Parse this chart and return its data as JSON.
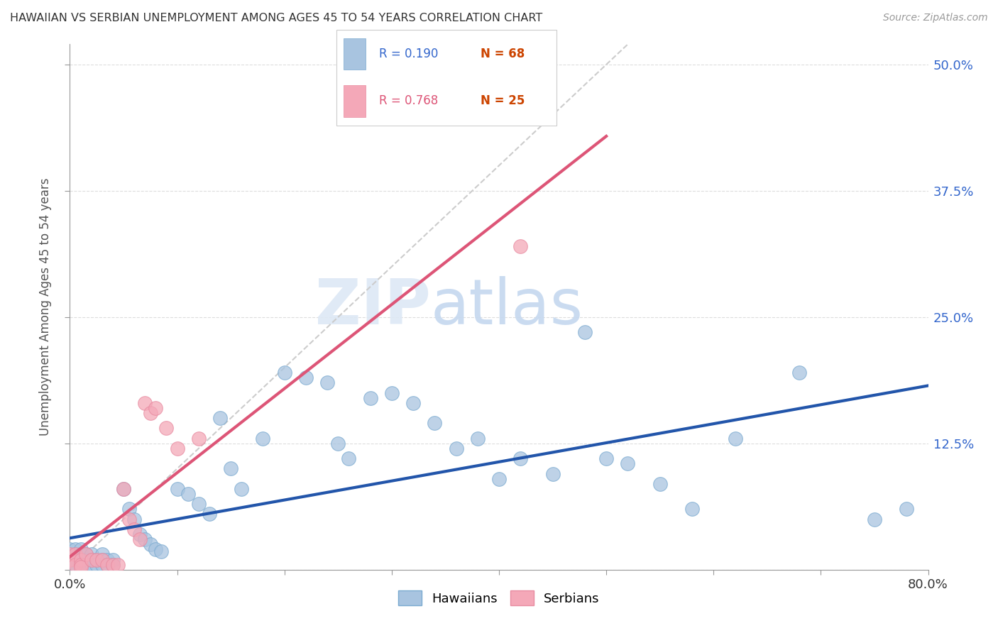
{
  "title": "HAWAIIAN VS SERBIAN UNEMPLOYMENT AMONG AGES 45 TO 54 YEARS CORRELATION CHART",
  "source": "Source: ZipAtlas.com",
  "ylabel": "Unemployment Among Ages 45 to 54 years",
  "xlim": [
    0.0,
    0.8
  ],
  "ylim": [
    0.0,
    0.52
  ],
  "hawaiian_color": "#a8c4e0",
  "hawaiian_edge_color": "#7aaad0",
  "serbian_color": "#f4a8b8",
  "serbian_edge_color": "#e88aa0",
  "hawaiian_line_color": "#2255aa",
  "serbian_line_color": "#dd5577",
  "diagonal_line_color": "#cccccc",
  "watermark": "ZIPatlas",
  "hawaiian_x": [
    0.0,
    0.0,
    0.0,
    0.0,
    0.0,
    0.0,
    0.005,
    0.005,
    0.005,
    0.005,
    0.01,
    0.01,
    0.01,
    0.01,
    0.015,
    0.015,
    0.015,
    0.02,
    0.02,
    0.02,
    0.025,
    0.025,
    0.03,
    0.03,
    0.03,
    0.035,
    0.035,
    0.04,
    0.04,
    0.05,
    0.055,
    0.06,
    0.065,
    0.07,
    0.075,
    0.08,
    0.085,
    0.1,
    0.11,
    0.12,
    0.13,
    0.14,
    0.15,
    0.16,
    0.18,
    0.2,
    0.22,
    0.24,
    0.25,
    0.26,
    0.28,
    0.3,
    0.32,
    0.34,
    0.36,
    0.38,
    0.4,
    0.42,
    0.45,
    0.48,
    0.5,
    0.52,
    0.55,
    0.58,
    0.62,
    0.68,
    0.75,
    0.78
  ],
  "hawaiian_y": [
    0.02,
    0.015,
    0.01,
    0.008,
    0.005,
    0.003,
    0.02,
    0.015,
    0.01,
    0.005,
    0.02,
    0.015,
    0.01,
    0.005,
    0.015,
    0.01,
    0.005,
    0.015,
    0.01,
    0.005,
    0.01,
    0.005,
    0.015,
    0.01,
    0.005,
    0.01,
    0.005,
    0.01,
    0.005,
    0.08,
    0.06,
    0.05,
    0.035,
    0.03,
    0.025,
    0.02,
    0.018,
    0.08,
    0.075,
    0.065,
    0.055,
    0.15,
    0.1,
    0.08,
    0.13,
    0.195,
    0.19,
    0.185,
    0.125,
    0.11,
    0.17,
    0.175,
    0.165,
    0.145,
    0.12,
    0.13,
    0.09,
    0.11,
    0.095,
    0.235,
    0.11,
    0.105,
    0.085,
    0.06,
    0.13,
    0.195,
    0.05,
    0.06
  ],
  "serbian_x": [
    0.0,
    0.0,
    0.005,
    0.005,
    0.01,
    0.01,
    0.01,
    0.015,
    0.02,
    0.025,
    0.03,
    0.035,
    0.04,
    0.045,
    0.05,
    0.055,
    0.06,
    0.065,
    0.07,
    0.075,
    0.08,
    0.09,
    0.1,
    0.12,
    0.42
  ],
  "serbian_y": [
    0.015,
    0.01,
    0.015,
    0.005,
    0.01,
    0.005,
    0.003,
    0.015,
    0.01,
    0.01,
    0.01,
    0.005,
    0.005,
    0.005,
    0.08,
    0.05,
    0.04,
    0.03,
    0.165,
    0.155,
    0.16,
    0.14,
    0.12,
    0.13,
    0.32
  ],
  "legend_r_hawaiian": "R = 0.190",
  "legend_n_hawaiian": "N = 68",
  "legend_r_serbian": "R = 0.768",
  "legend_n_serbian": "N = 25",
  "r_color": "#2255aa",
  "n_color_hawaiian": "#dd3300",
  "serbian_r_color": "#dd5577",
  "n_color_serbian": "#dd3300"
}
